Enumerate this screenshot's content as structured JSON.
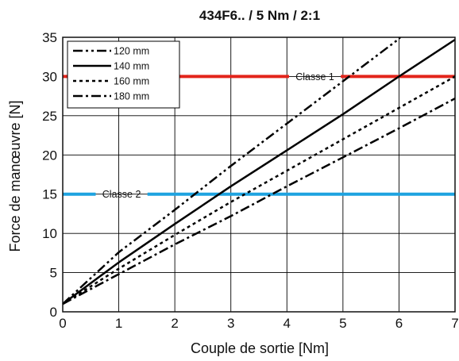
{
  "chart_data": {
    "type": "line",
    "title": "434F6.. / 5 Nm / 2:1",
    "xlabel": "Couple de sortie [Nm]",
    "ylabel": "Force de manœuvre [N]",
    "xlim": [
      0,
      7
    ],
    "ylim": [
      0,
      35
    ],
    "x_ticks": [
      "0",
      "1",
      "2",
      "3",
      "4",
      "5",
      "6",
      "7"
    ],
    "y_ticks": [
      "0",
      "5",
      "10",
      "15",
      "20",
      "25",
      "30",
      "35"
    ],
    "grid": true,
    "legend_position": "top-left",
    "series": [
      {
        "name": "120 mm",
        "dash": "dash-dot-dot",
        "points": [
          [
            0,
            1
          ],
          [
            1,
            7.6
          ],
          [
            2,
            13.0
          ],
          [
            3,
            18.6
          ],
          [
            4,
            24.0
          ],
          [
            5,
            29.4
          ],
          [
            6,
            34.8
          ],
          [
            6.02,
            35
          ]
        ]
      },
      {
        "name": "140 mm",
        "dash": "solid",
        "points": [
          [
            0,
            1
          ],
          [
            1,
            6.3
          ],
          [
            2,
            11.2
          ],
          [
            3,
            16.0
          ],
          [
            4,
            20.6
          ],
          [
            5,
            25.2
          ],
          [
            6,
            30.0
          ],
          [
            7,
            34.7
          ]
        ]
      },
      {
        "name": "160 mm",
        "dash": "dotted",
        "points": [
          [
            0,
            1
          ],
          [
            1,
            5.5
          ],
          [
            2,
            9.8
          ],
          [
            3,
            14.0
          ],
          [
            4,
            18.0
          ],
          [
            5,
            22.0
          ],
          [
            6,
            26.0
          ],
          [
            7,
            30.0
          ]
        ]
      },
      {
        "name": "180 mm",
        "dash": "dash-dot",
        "points": [
          [
            0,
            1
          ],
          [
            1,
            4.8
          ],
          [
            2,
            8.6
          ],
          [
            3,
            12.2
          ],
          [
            4,
            16.0
          ],
          [
            5,
            19.7
          ],
          [
            6,
            23.4
          ],
          [
            7,
            27.2
          ]
        ]
      }
    ],
    "reference_lines": [
      {
        "label": "Classe 1",
        "y": 30,
        "color": "#e3241b",
        "label_x": 4.5
      },
      {
        "label": "Classe 2",
        "y": 15,
        "color": "#1ea3e0",
        "label_x": 1.05
      }
    ]
  }
}
